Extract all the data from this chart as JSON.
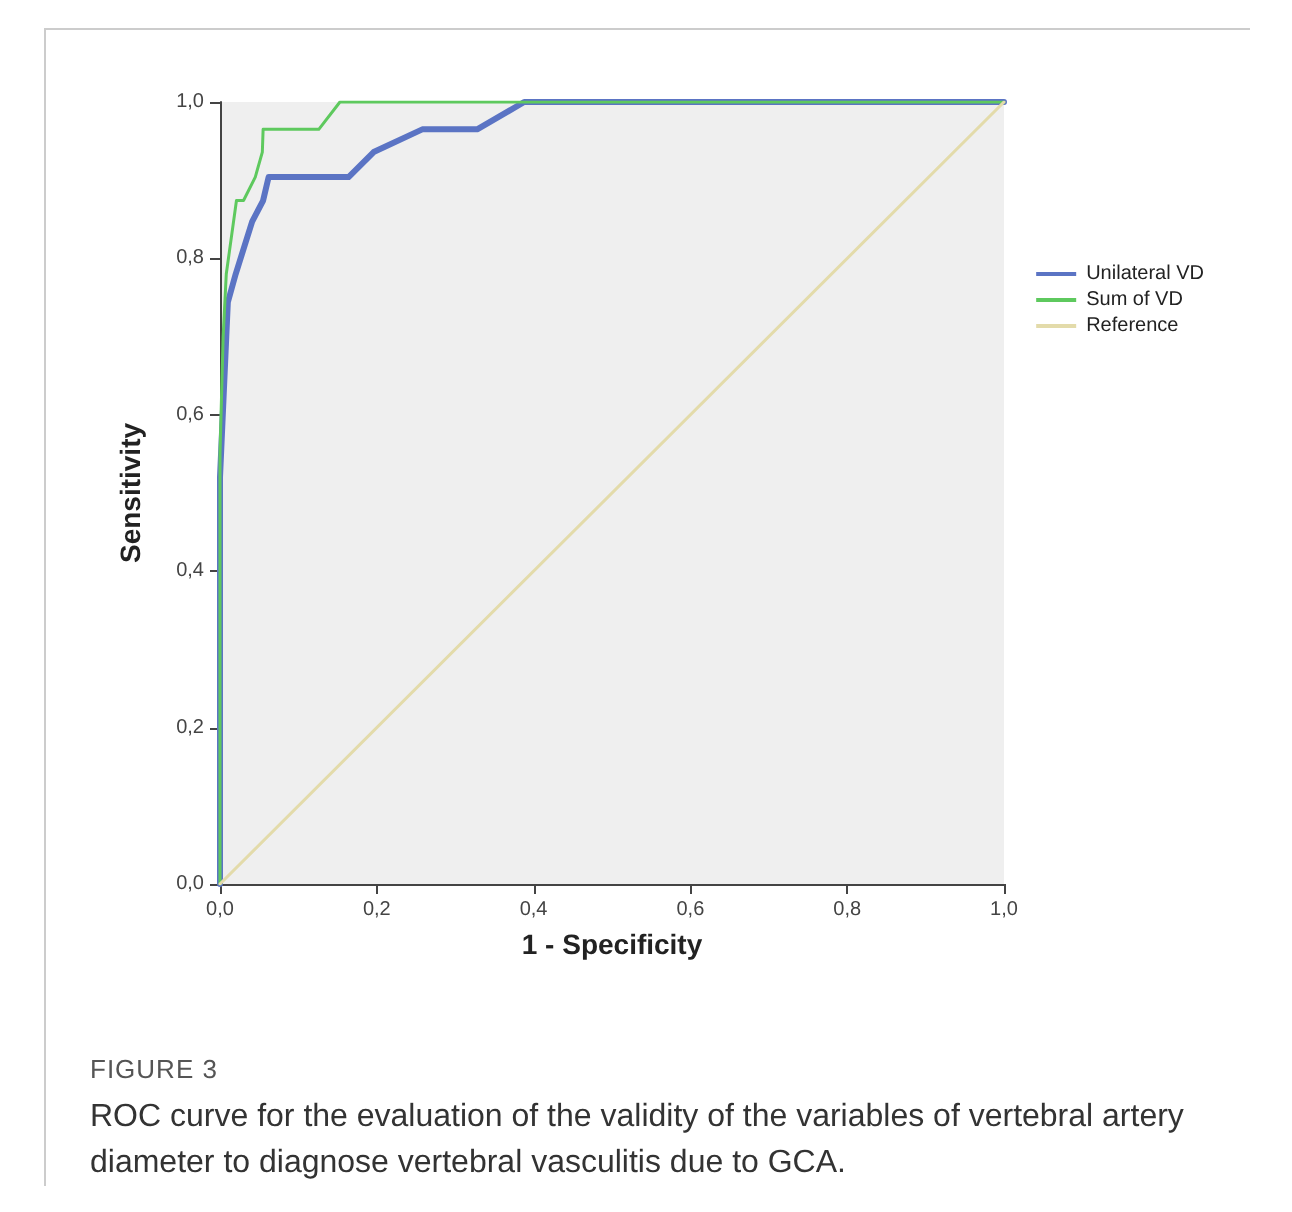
{
  "chart_data": {
    "type": "line",
    "xlabel": "1 - Specificity",
    "ylabel": "Sensitivity",
    "xlim": [
      0,
      1
    ],
    "ylim": [
      0,
      1
    ],
    "xticks": [
      {
        "value": 0,
        "label": "0,0"
      },
      {
        "value": 0.2,
        "label": "0,2"
      },
      {
        "value": 0.4,
        "label": "0,4"
      },
      {
        "value": 0.6,
        "label": "0,6"
      },
      {
        "value": 0.8,
        "label": "0,8"
      },
      {
        "value": 1,
        "label": "1,0"
      }
    ],
    "yticks": [
      {
        "value": 0,
        "label": "0,0"
      },
      {
        "value": 0.2,
        "label": "0,2"
      },
      {
        "value": 0.4,
        "label": "0,4"
      },
      {
        "value": 0.6,
        "label": "0,6"
      },
      {
        "value": 0.8,
        "label": "0,8"
      },
      {
        "value": 1,
        "label": "1,0"
      }
    ],
    "grid": false,
    "legend": "right",
    "marker": "none",
    "line_style": "solid",
    "annotations": [
      "FIGURE 3",
      "ROC curve for the evaluation of the validity of the variables of vertebral artery diameter to diagnose vertebral vasculitis due to GCA."
    ],
    "series": [
      {
        "name": "Unilateral VD",
        "color": "#5b74c4",
        "x": [
          0,
          0,
          0.008,
          0.01,
          0.02,
          0.041,
          0.055,
          0.062,
          0.164,
          0.196,
          0.258,
          0.328,
          0.388,
          1
        ],
        "values": [
          0,
          0.52,
          0.7,
          0.744,
          0.78,
          0.847,
          0.874,
          0.904,
          0.904,
          0.936,
          0.965,
          0.965,
          1,
          1
        ]
      },
      {
        "name": "Sum of VD",
        "color": "#5ec95e",
        "x": [
          0,
          0,
          0.004,
          0.008,
          0.021,
          0.03,
          0.045,
          0.054,
          0.055,
          0.126,
          0.153,
          1
        ],
        "values": [
          0,
          0.55,
          0.7,
          0.78,
          0.874,
          0.874,
          0.904,
          0.936,
          0.965,
          0.965,
          1,
          1
        ]
      },
      {
        "name": "Reference",
        "color": "#e3dbaa",
        "x": [
          0,
          1
        ],
        "values": [
          0,
          1
        ]
      }
    ]
  }
}
